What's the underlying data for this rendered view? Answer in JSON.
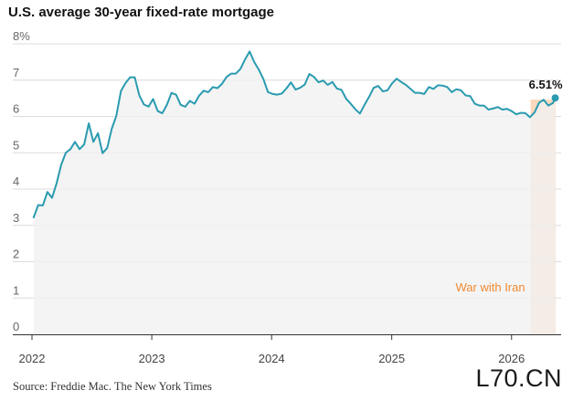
{
  "title": "U.S. average 30-year fixed-rate mortgage",
  "source": "Source: Freddie Mac.  The New York Times",
  "watermark": "L70.CN",
  "colors": {
    "line": "#2a9bb0",
    "area": "#f1f1f1",
    "highlight": "#fcd9bd",
    "highlight_text": "#f08a34",
    "grid": "#dcdcdc"
  },
  "chart_data": {
    "type": "line",
    "title": "U.S. average 30-year fixed-rate mortgage",
    "xlabel": "",
    "ylabel": "",
    "ylim": [
      0,
      8
    ],
    "xlim": [
      "2022-01-01",
      "2026-06-01"
    ],
    "y_ticks": [
      "8%",
      "7",
      "6",
      "5",
      "4",
      "3",
      "2",
      "1",
      "0"
    ],
    "x_ticks": [
      "2022",
      "2023",
      "2024",
      "2025",
      "2026"
    ],
    "grid": true,
    "end_label": "6.51%",
    "annotation": {
      "label": "War with Iran",
      "start": "2026-02-28",
      "end": "2026-05-15"
    },
    "series": [
      {
        "points": [
          [
            "2022-01-06",
            3.22
          ],
          [
            "2022-01-20",
            3.56
          ],
          [
            "2022-02-03",
            3.55
          ],
          [
            "2022-02-17",
            3.92
          ],
          [
            "2022-03-03",
            3.76
          ],
          [
            "2022-03-17",
            4.16
          ],
          [
            "2022-03-31",
            4.67
          ],
          [
            "2022-04-14",
            5.0
          ],
          [
            "2022-04-28",
            5.1
          ],
          [
            "2022-05-12",
            5.3
          ],
          [
            "2022-05-26",
            5.1
          ],
          [
            "2022-06-09",
            5.23
          ],
          [
            "2022-06-23",
            5.81
          ],
          [
            "2022-07-07",
            5.3
          ],
          [
            "2022-07-21",
            5.54
          ],
          [
            "2022-08-04",
            4.99
          ],
          [
            "2022-08-18",
            5.13
          ],
          [
            "2022-09-01",
            5.66
          ],
          [
            "2022-09-15",
            6.02
          ],
          [
            "2022-09-29",
            6.7
          ],
          [
            "2022-10-13",
            6.92
          ],
          [
            "2022-10-27",
            7.08
          ],
          [
            "2022-11-10",
            7.08
          ],
          [
            "2022-11-24",
            6.58
          ],
          [
            "2022-12-08",
            6.33
          ],
          [
            "2022-12-22",
            6.27
          ],
          [
            "2023-01-05",
            6.48
          ],
          [
            "2023-01-19",
            6.15
          ],
          [
            "2023-02-02",
            6.09
          ],
          [
            "2023-02-16",
            6.32
          ],
          [
            "2023-03-02",
            6.65
          ],
          [
            "2023-03-16",
            6.6
          ],
          [
            "2023-03-30",
            6.32
          ],
          [
            "2023-04-13",
            6.27
          ],
          [
            "2023-04-27",
            6.43
          ],
          [
            "2023-05-11",
            6.35
          ],
          [
            "2023-05-25",
            6.57
          ],
          [
            "2023-06-08",
            6.71
          ],
          [
            "2023-06-22",
            6.67
          ],
          [
            "2023-07-06",
            6.81
          ],
          [
            "2023-07-20",
            6.78
          ],
          [
            "2023-08-03",
            6.9
          ],
          [
            "2023-08-17",
            7.09
          ],
          [
            "2023-08-31",
            7.18
          ],
          [
            "2023-09-14",
            7.18
          ],
          [
            "2023-09-28",
            7.31
          ],
          [
            "2023-10-12",
            7.57
          ],
          [
            "2023-10-26",
            7.79
          ],
          [
            "2023-11-09",
            7.5
          ],
          [
            "2023-11-23",
            7.29
          ],
          [
            "2023-12-07",
            7.03
          ],
          [
            "2023-12-21",
            6.67
          ],
          [
            "2024-01-04",
            6.62
          ],
          [
            "2024-01-18",
            6.6
          ],
          [
            "2024-02-01",
            6.63
          ],
          [
            "2024-02-15",
            6.77
          ],
          [
            "2024-02-29",
            6.94
          ],
          [
            "2024-03-14",
            6.74
          ],
          [
            "2024-03-28",
            6.79
          ],
          [
            "2024-04-11",
            6.88
          ],
          [
            "2024-04-25",
            7.17
          ],
          [
            "2024-05-09",
            7.09
          ],
          [
            "2024-05-23",
            6.94
          ],
          [
            "2024-06-06",
            6.99
          ],
          [
            "2024-06-20",
            6.87
          ],
          [
            "2024-07-04",
            6.95
          ],
          [
            "2024-07-18",
            6.77
          ],
          [
            "2024-08-01",
            6.73
          ],
          [
            "2024-08-15",
            6.49
          ],
          [
            "2024-08-29",
            6.35
          ],
          [
            "2024-09-12",
            6.2
          ],
          [
            "2024-09-26",
            6.08
          ],
          [
            "2024-10-10",
            6.32
          ],
          [
            "2024-10-24",
            6.54
          ],
          [
            "2024-11-07",
            6.79
          ],
          [
            "2024-11-21",
            6.84
          ],
          [
            "2024-12-05",
            6.69
          ],
          [
            "2024-12-19",
            6.72
          ],
          [
            "2025-01-02",
            6.91
          ],
          [
            "2025-01-16",
            7.04
          ],
          [
            "2025-01-30",
            6.95
          ],
          [
            "2025-02-13",
            6.87
          ],
          [
            "2025-02-27",
            6.76
          ],
          [
            "2025-03-13",
            6.65
          ],
          [
            "2025-03-27",
            6.65
          ],
          [
            "2025-04-10",
            6.62
          ],
          [
            "2025-04-24",
            6.81
          ],
          [
            "2025-05-08",
            6.76
          ],
          [
            "2025-05-22",
            6.86
          ],
          [
            "2025-06-05",
            6.85
          ],
          [
            "2025-06-19",
            6.81
          ],
          [
            "2025-07-03",
            6.67
          ],
          [
            "2025-07-17",
            6.75
          ],
          [
            "2025-07-31",
            6.72
          ],
          [
            "2025-08-14",
            6.58
          ],
          [
            "2025-08-28",
            6.56
          ],
          [
            "2025-09-11",
            6.35
          ],
          [
            "2025-09-25",
            6.3
          ],
          [
            "2025-10-09",
            6.3
          ],
          [
            "2025-10-23",
            6.19
          ],
          [
            "2025-11-06",
            6.22
          ],
          [
            "2025-11-20",
            6.26
          ],
          [
            "2025-12-04",
            6.19
          ],
          [
            "2025-12-18",
            6.21
          ],
          [
            "2026-01-01",
            6.15
          ],
          [
            "2026-01-15",
            6.06
          ],
          [
            "2026-01-29",
            6.1
          ],
          [
            "2026-02-12",
            6.09
          ],
          [
            "2026-02-26",
            5.98
          ],
          [
            "2026-03-12",
            6.11
          ],
          [
            "2026-03-26",
            6.38
          ],
          [
            "2026-04-09",
            6.46
          ],
          [
            "2026-04-23",
            6.3
          ],
          [
            "2026-05-07",
            6.37
          ],
          [
            "2026-05-14",
            6.51
          ]
        ]
      }
    ]
  }
}
